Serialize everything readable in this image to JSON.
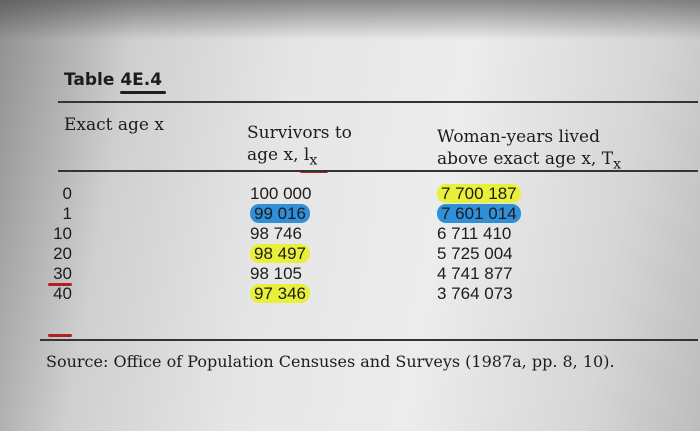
{
  "table": {
    "title_prefix": "Table ",
    "title_number": "4E.4",
    "headers": {
      "age": "Exact age x",
      "survivors_line1": "Survivors to",
      "survivors_line2": "age x, l",
      "survivors_sub": "x",
      "years_line1": "Woman-years lived",
      "years_line2": "above exact age x, T",
      "years_sub": "x"
    },
    "rows": [
      {
        "age": "0",
        "survivors": "100 000",
        "years": "7 700 187"
      },
      {
        "age": "1",
        "survivors": "99 016",
        "years": "7 601 014"
      },
      {
        "age": "10",
        "survivors": "98 746",
        "years": "6 711 410"
      },
      {
        "age": "20",
        "survivors": "98 497",
        "years": "5 725 004"
      },
      {
        "age": "30",
        "survivors": "98 105",
        "years": "4 741 877"
      },
      {
        "age": "40",
        "survivors": "97 346",
        "years": "3 764 073"
      }
    ],
    "source": "Source: Office of Population Censuses and Surveys (1987a, pp. 8, 10)."
  },
  "highlight_colors": {
    "yellow": "#e8f03a",
    "blue": "#2f8fd8",
    "pen_red": "#b02020"
  }
}
